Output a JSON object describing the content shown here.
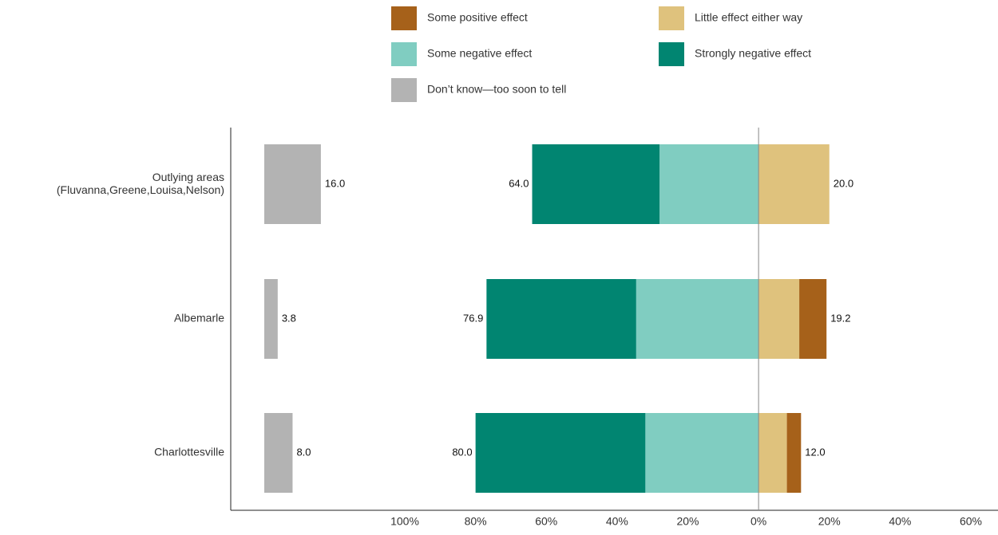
{
  "chart_data": {
    "type": "diverging-bar",
    "categories": [
      "Outlying areas\n(Fluvanna,Greene,Louisa,Nelson)",
      "Albemarle",
      "Charlottesville"
    ],
    "series": [
      {
        "name": "Some positive effect",
        "color": "#a6611a",
        "values": [
          0,
          7.7,
          4
        ]
      },
      {
        "name": "Little effect either way",
        "color": "#dfc27d",
        "values": [
          20,
          11.5,
          8
        ]
      },
      {
        "name": "Some negative effect",
        "color": "#80cdc1",
        "values": [
          28,
          34.6,
          32
        ]
      },
      {
        "name": "Strongly negative effect",
        "color": "#018571",
        "values": [
          36,
          42.3,
          48
        ]
      },
      {
        "name": "Don’t know—too soon to tell",
        "color": "#b3b3b3",
        "values": [
          16,
          3.8,
          8
        ],
        "value_labels": [
          "16.0",
          "3.8",
          "8.0"
        ]
      }
    ],
    "negative_labels": [
      "64.0",
      "76.9",
      "80.0"
    ],
    "positive_labels": [
      "20.0",
      "19.2",
      "12.0"
    ],
    "xlim": [
      -100,
      60
    ],
    "xticks": [
      {
        "value": -100,
        "label": "100%"
      },
      {
        "value": -80,
        "label": "80%"
      },
      {
        "value": -60,
        "label": "60%"
      },
      {
        "value": -40,
        "label": "40%"
      },
      {
        "value": -20,
        "label": "20%"
      },
      {
        "value": 0,
        "label": "0%"
      },
      {
        "value": 20,
        "label": "20%"
      },
      {
        "value": 40,
        "label": "40%"
      },
      {
        "value": 60,
        "label": "60%"
      }
    ]
  }
}
